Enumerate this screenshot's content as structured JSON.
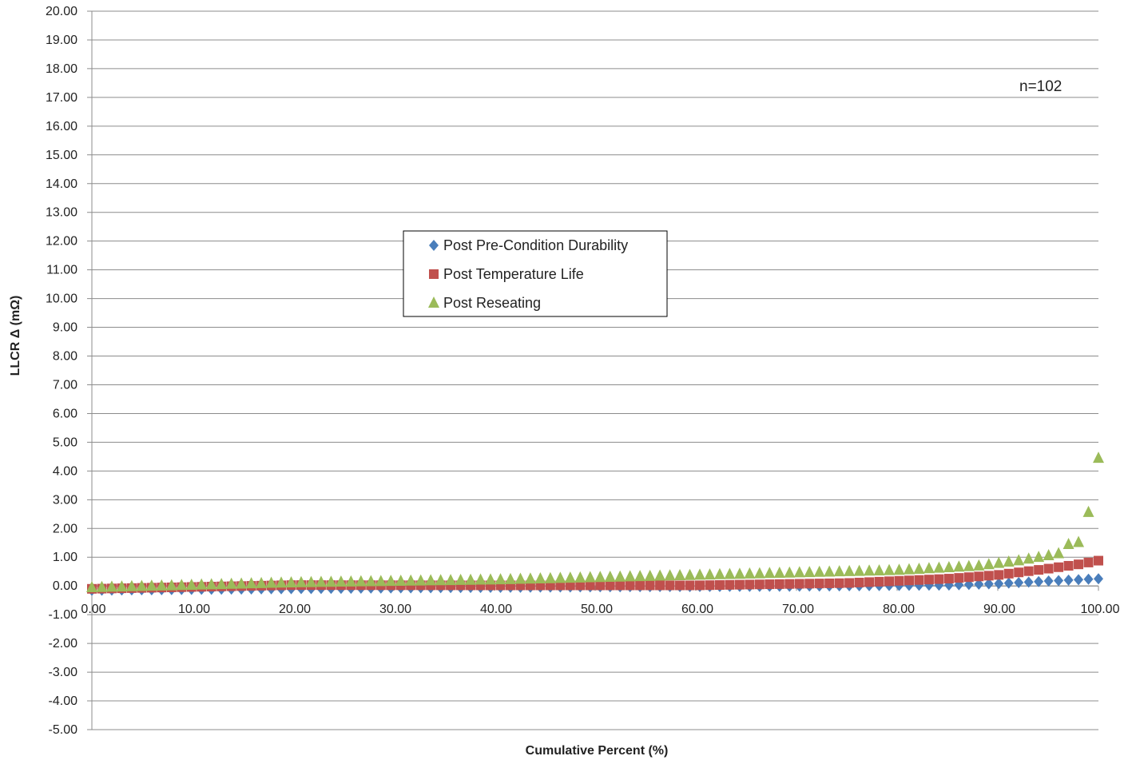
{
  "chart_data": {
    "type": "scatter",
    "title": "",
    "xlabel": "Cumulative Percent (%)",
    "ylabel": "LLCR Δ (mΩ)",
    "xlim": [
      0,
      100
    ],
    "ylim": [
      -5,
      20
    ],
    "x_ticks": [
      "0.00",
      "10.00",
      "20.00",
      "30.00",
      "40.00",
      "50.00",
      "60.00",
      "70.00",
      "80.00",
      "90.00",
      "100.00"
    ],
    "y_ticks": [
      "20.00",
      "19.00",
      "18.00",
      "17.00",
      "16.00",
      "15.00",
      "14.00",
      "13.00",
      "12.00",
      "11.00",
      "10.00",
      "9.00",
      "8.00",
      "7.00",
      "6.00",
      "5.00",
      "4.00",
      "3.00",
      "2.00",
      "1.00",
      "0.00",
      "-1.00",
      "-2.00",
      "-3.00",
      "-4.00",
      "-5.00"
    ],
    "grid": "horizontal",
    "legend_position": "center-left",
    "annotation": "n=102",
    "n_points": 102,
    "series": [
      {
        "name": "Post Pre-Condition Durability",
        "marker": "diamond",
        "color": "#4a7ebb",
        "key_points": [
          [
            0,
            -0.15
          ],
          [
            10,
            -0.12
          ],
          [
            30,
            -0.07
          ],
          [
            50,
            -0.03
          ],
          [
            70,
            -0.01
          ],
          [
            85,
            0.03
          ],
          [
            90,
            0.08
          ],
          [
            95,
            0.17
          ],
          [
            100,
            0.25
          ]
        ]
      },
      {
        "name": "Post Temperature Life",
        "marker": "square",
        "color": "#c0504d",
        "key_points": [
          [
            0,
            -0.1
          ],
          [
            20,
            0.03
          ],
          [
            40,
            0.02
          ],
          [
            60,
            0.02
          ],
          [
            75,
            0.1
          ],
          [
            85,
            0.25
          ],
          [
            90,
            0.38
          ],
          [
            95,
            0.6
          ],
          [
            98,
            0.75
          ],
          [
            100,
            0.88
          ]
        ]
      },
      {
        "name": "Post Reseating",
        "marker": "triangle",
        "color": "#9bbb59",
        "key_points": [
          [
            0,
            -0.05
          ],
          [
            20,
            0.12
          ],
          [
            40,
            0.22
          ],
          [
            60,
            0.38
          ],
          [
            80,
            0.55
          ],
          [
            88,
            0.7
          ],
          [
            92,
            0.88
          ],
          [
            96,
            1.12
          ],
          [
            97,
            1.45
          ],
          [
            98,
            1.5
          ],
          [
            99,
            2.55
          ],
          [
            100,
            4.45
          ]
        ]
      }
    ]
  }
}
